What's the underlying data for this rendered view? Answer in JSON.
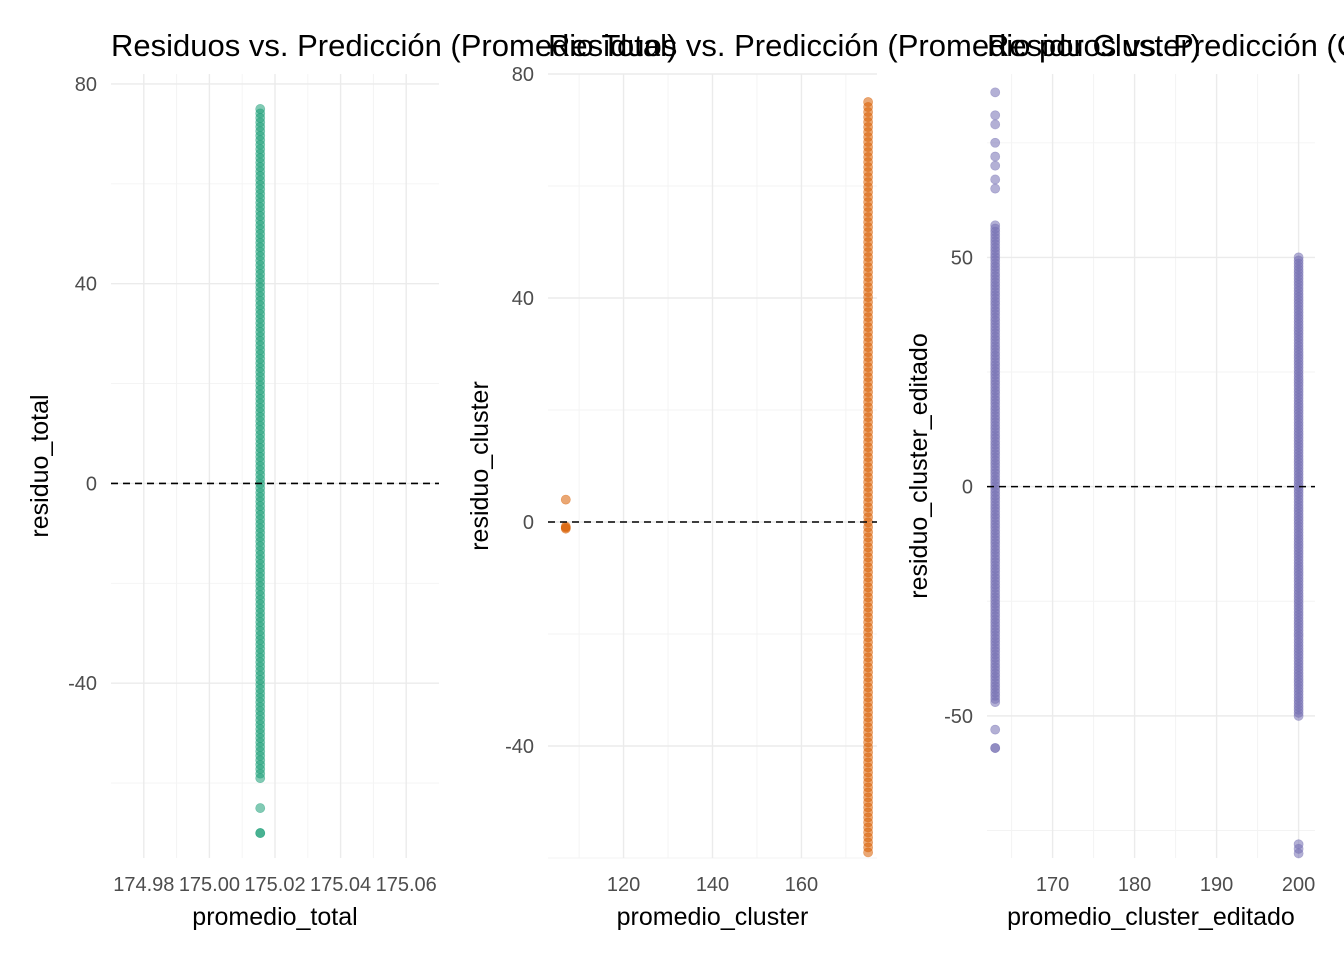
{
  "chart_data": [
    {
      "type": "scatter",
      "title": "Residuos vs. Predicción (Promedio Total)",
      "xlabel": "promedio_total",
      "ylabel": "residuo_total",
      "xlim": [
        174.97,
        175.07
      ],
      "ylim": [
        -75,
        82
      ],
      "xticks": [
        174.98,
        175.0,
        175.02,
        175.04,
        175.06
      ],
      "xtick_labels": [
        "174.98",
        "175.00",
        "175.02",
        "175.04",
        "175.06"
      ],
      "yticks": [
        -40,
        0,
        40,
        80
      ],
      "ytick_labels": [
        "-40",
        "0",
        "40",
        "80"
      ],
      "reference_line_y": 0,
      "grid": true,
      "point_color": "#1b9e77",
      "point_opacity": 0.55,
      "series": [
        {
          "x_constant": 175.0155,
          "y_range": [
            -59,
            75
          ],
          "outliers_y": [
            -65,
            -70,
            -70
          ]
        }
      ]
    },
    {
      "type": "scatter",
      "title": "Residuos vs. Predicción (Promedio por Cluster)",
      "xlabel": "promedio_cluster",
      "ylabel": "residuo_cluster",
      "xlim": [
        103,
        177
      ],
      "ylim": [
        -60,
        80
      ],
      "xticks": [
        120,
        140,
        160
      ],
      "xtick_labels": [
        "120",
        "140",
        "160"
      ],
      "yticks": [
        -40,
        0,
        40,
        80
      ],
      "ytick_labels": [
        "-40",
        "0",
        "40",
        "80"
      ],
      "reference_line_y": 0,
      "grid": true,
      "point_color": "#d95f02",
      "point_opacity": 0.55,
      "series": [
        {
          "x_constant": 175.0,
          "y_range": [
            -59,
            75
          ]
        },
        {
          "x_constant": 107.0,
          "points_y": [
            4,
            -1,
            -1.2,
            -0.8
          ]
        }
      ]
    },
    {
      "type": "scatter",
      "title": "Residuos vs. Predicción (Cluster Editado)",
      "xlabel": "promedio_cluster_editado",
      "ylabel": "residuo_cluster_editado",
      "xlim": [
        162,
        202
      ],
      "ylim": [
        -81,
        90
      ],
      "xticks": [
        170,
        180,
        190,
        200
      ],
      "xtick_labels": [
        "170",
        "180",
        "190",
        "200"
      ],
      "yticks": [
        -50,
        0,
        50
      ],
      "ytick_labels": [
        "-50",
        "0",
        "50"
      ],
      "reference_line_y": 0,
      "grid": true,
      "point_color": "#7570b3",
      "point_opacity": 0.55,
      "series": [
        {
          "x_constant": 163.0,
          "y_range": [
            -47,
            57
          ],
          "outliers_y": [
            -53,
            -57,
            -57,
            65,
            67,
            70,
            72,
            75,
            79,
            81,
            86
          ]
        },
        {
          "x_constant": 200.0,
          "y_range": [
            -50,
            50
          ],
          "outliers_y": [
            -78,
            -79,
            -80
          ]
        }
      ]
    }
  ]
}
